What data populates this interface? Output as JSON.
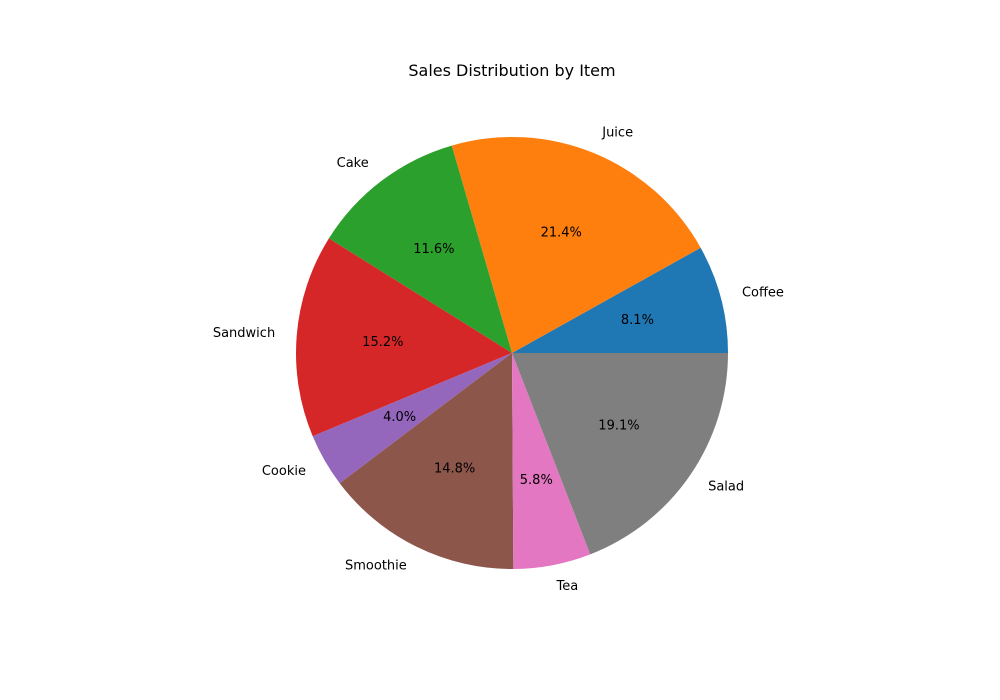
{
  "chart_data": {
    "type": "pie",
    "title": "Sales Distribution by Item",
    "categories": [
      "Coffee",
      "Juice",
      "Cake",
      "Sandwich",
      "Cookie",
      "Smoothie",
      "Tea",
      "Salad"
    ],
    "values": [
      8.1,
      21.4,
      11.6,
      15.2,
      4.0,
      14.8,
      5.8,
      19.1
    ],
    "percent_labels": [
      "8.1%",
      "21.4%",
      "11.6%",
      "15.2%",
      "4.0%",
      "14.8%",
      "5.8%",
      "19.1%"
    ],
    "colors": [
      "#1f77b4",
      "#ff7f0e",
      "#2ca02c",
      "#d62728",
      "#9467bd",
      "#8c564b",
      "#e377c2",
      "#7f7f7f"
    ],
    "start_angle_deg": 0,
    "direction": "counterclockwise",
    "legend": "none"
  }
}
